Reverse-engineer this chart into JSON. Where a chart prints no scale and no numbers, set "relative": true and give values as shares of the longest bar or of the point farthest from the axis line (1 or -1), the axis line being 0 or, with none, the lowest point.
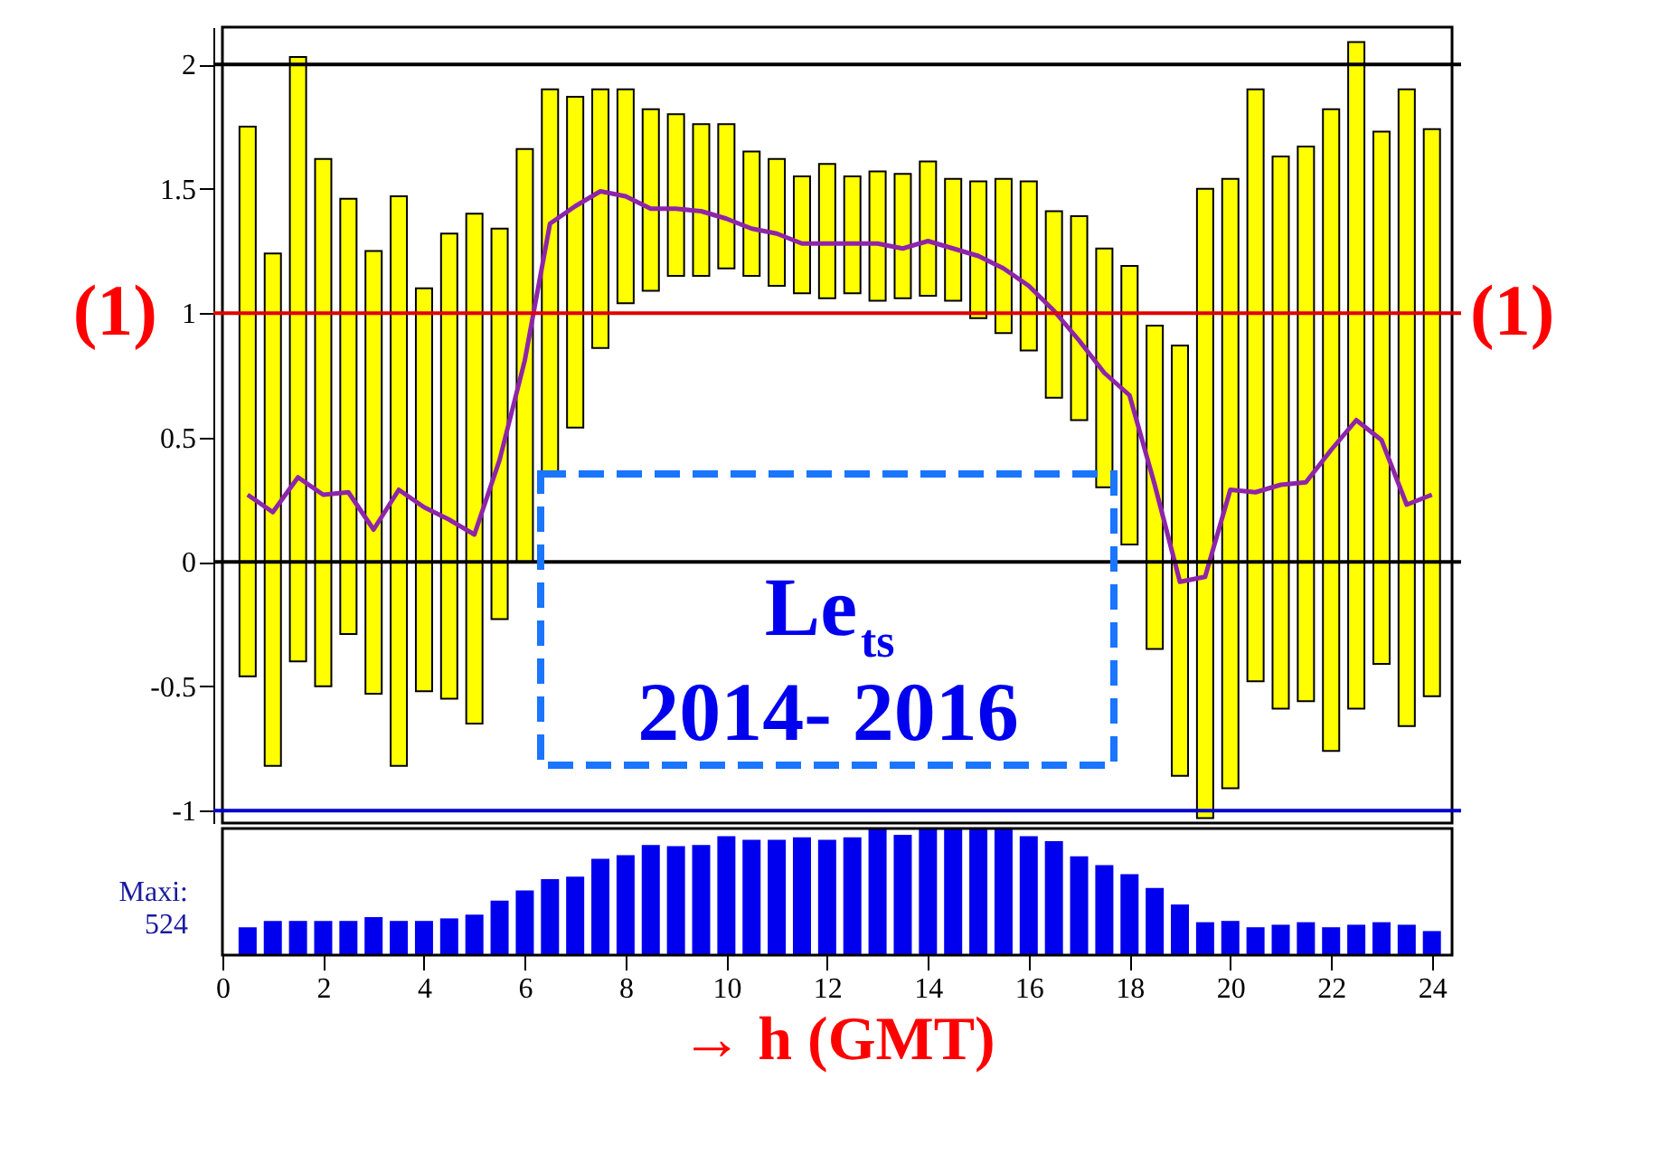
{
  "chart_data": [
    {
      "type": "bar",
      "x": [
        0.5,
        1,
        1.5,
        2,
        2.5,
        3,
        3.5,
        4,
        4.5,
        5,
        5.5,
        6,
        6.5,
        7,
        7.5,
        8,
        8.5,
        9,
        9.5,
        10,
        10.5,
        11,
        11.5,
        12,
        12.5,
        13,
        13.5,
        14,
        14.5,
        15,
        15.5,
        16,
        16.5,
        17,
        17.5,
        18,
        18.5,
        19,
        19.5,
        20,
        20.5,
        21,
        21.5,
        22,
        22.5,
        23,
        23.5,
        24
      ],
      "series": [
        {
          "type": "bar",
          "color": "#ffff00",
          "base": [
            -0.46,
            -0.82,
            -0.4,
            -0.5,
            -0.29,
            -0.53,
            -0.82,
            -0.52,
            -0.55,
            -0.65,
            -0.23,
            0.0,
            0.36,
            0.54,
            0.86,
            1.04,
            1.09,
            1.15,
            1.15,
            1.18,
            1.15,
            1.11,
            1.08,
            1.06,
            1.08,
            1.05,
            1.06,
            1.07,
            1.05,
            0.98,
            0.92,
            0.85,
            0.66,
            0.57,
            0.3,
            0.07,
            -0.35,
            -0.86,
            -1.03,
            -0.91,
            -0.48,
            -0.59,
            -0.56,
            -0.76,
            -0.59,
            -0.41,
            -0.66,
            -0.54
          ],
          "values": [
            2.21,
            2.06,
            2.43,
            2.12,
            1.75,
            1.78,
            2.29,
            1.62,
            1.87,
            2.05,
            1.57,
            1.66,
            1.54,
            1.33,
            1.04,
            0.86,
            0.73,
            0.65,
            0.61,
            0.58,
            0.5,
            0.51,
            0.47,
            0.54,
            0.47,
            0.52,
            0.5,
            0.54,
            0.49,
            0.55,
            0.62,
            0.68,
            0.75,
            0.82,
            0.96,
            1.12,
            1.3,
            1.73,
            2.53,
            2.45,
            2.38,
            2.22,
            2.23,
            2.58,
            2.68,
            2.14,
            2.56,
            2.28
          ]
        },
        {
          "type": "line",
          "color": "#8e24aa",
          "values": [
            0.27,
            0.2,
            0.34,
            0.27,
            0.28,
            0.13,
            0.29,
            0.22,
            0.17,
            0.11,
            0.41,
            0.81,
            1.36,
            1.43,
            1.49,
            1.47,
            1.42,
            1.42,
            1.41,
            1.38,
            1.34,
            1.32,
            1.28,
            1.28,
            1.28,
            1.28,
            1.26,
            1.29,
            1.26,
            1.23,
            1.18,
            1.11,
            1.01,
            0.89,
            0.76,
            0.67,
            0.31,
            -0.08,
            -0.06,
            0.29,
            0.28,
            0.31,
            0.32,
            0.45,
            0.57,
            0.49,
            0.23,
            0.27
          ]
        }
      ],
      "xlim": [
        0,
        24.4
      ],
      "ylim": [
        -1.05,
        2.15
      ],
      "yticks": [
        -1,
        -0.5,
        0,
        0.5,
        1,
        1.5,
        2
      ],
      "ref_lines": [
        {
          "axis": "y",
          "value": 2,
          "color": "#000000"
        },
        {
          "axis": "y",
          "value": 1,
          "color": "#e00000"
        },
        {
          "axis": "y",
          "value": 0,
          "color": "#000000"
        },
        {
          "axis": "y",
          "value": -1,
          "color": "#0000cc"
        }
      ],
      "annotations": [
        {
          "text": "(1)",
          "x": 0,
          "y": 1
        },
        {
          "text": "(1)",
          "x": 24.4,
          "y": 1
        },
        "Le$_{ts}$ 2014- 2016"
      ],
      "tick_labels": "y",
      "grid": false,
      "marker": "none",
      "line_style": "solid"
    },
    {
      "type": "bar",
      "x": [
        0.5,
        1,
        1.5,
        2,
        2.5,
        3,
        3.5,
        4,
        4.5,
        5,
        5.5,
        6,
        6.5,
        7,
        7.5,
        8,
        8.5,
        9,
        9.5,
        10,
        10.5,
        11,
        11.5,
        12,
        12.5,
        13,
        13.5,
        14,
        14.5,
        15,
        15.5,
        16,
        16.5,
        17,
        17.5,
        18,
        18.5,
        19,
        19.5,
        20,
        20.5,
        21,
        21.5,
        22,
        22.5,
        23,
        23.5,
        24
      ],
      "values": [
        0.22,
        0.27,
        0.27,
        0.27,
        0.27,
        0.3,
        0.27,
        0.27,
        0.29,
        0.32,
        0.43,
        0.51,
        0.6,
        0.62,
        0.76,
        0.79,
        0.87,
        0.86,
        0.87,
        0.94,
        0.91,
        0.91,
        0.93,
        0.91,
        0.93,
        1,
        0.95,
        1,
        1,
        1,
        1,
        0.94,
        0.9,
        0.78,
        0.71,
        0.64,
        0.53,
        0.4,
        0.26,
        0.27,
        0.22,
        0.24,
        0.26,
        0.22,
        0.24,
        0.26,
        0.24,
        0.19
      ],
      "color": "#0000ee",
      "relative": true,
      "xlim": [
        0,
        24.4
      ],
      "xticks": [
        0,
        2,
        4,
        6,
        8,
        10,
        12,
        14,
        16,
        18,
        20,
        22,
        24
      ],
      "xlabel": "→ h (GMT)",
      "annotations": [
        "Maxi: 524"
      ],
      "tick_labels": "x",
      "grid": false
    }
  ]
}
